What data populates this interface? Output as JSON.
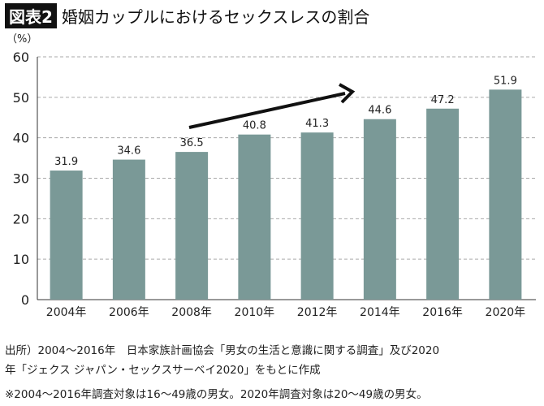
{
  "title_badge": "図表2",
  "title": "婚姻カップルにおけるセックスレスの割合",
  "source_line1": "出所）2004〜2016年　日本家族計画協会「男女の生活と意識に関する調査」及び2020",
  "source_line2": "年「ジェクス ジャパン・セックスサーベイ2020」をもとに作成",
  "footnote": "※2004〜2016年調査対象は16〜49歳の男女。2020年調査対象は20〜49歳の男女。",
  "colors": {
    "bar": "#7a9997",
    "grid": "#aaaaaa",
    "arrow": "#111111"
  },
  "chart_data": {
    "type": "bar",
    "title": "婚姻カップルにおけるセックスレスの割合",
    "ylabel": "（%）",
    "xlabel": "",
    "categories": [
      "2004年",
      "2006年",
      "2008年",
      "2010年",
      "2012年",
      "2014年",
      "2016年",
      "2020年"
    ],
    "values": [
      31.9,
      34.6,
      36.5,
      40.8,
      41.3,
      44.6,
      47.2,
      51.9
    ],
    "value_labels": [
      "31.9",
      "34.6",
      "36.5",
      "40.8",
      "41.3",
      "44.6",
      "47.2",
      "51.9"
    ],
    "ylim": [
      0,
      60
    ],
    "yticks": [
      0,
      10,
      20,
      30,
      40,
      50,
      60
    ],
    "grid": true,
    "annotation": "upward trend arrow from 2008 to 2014"
  }
}
